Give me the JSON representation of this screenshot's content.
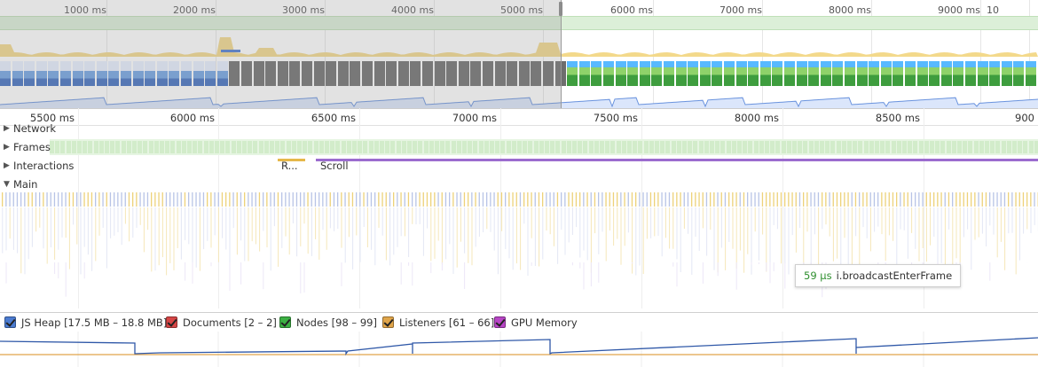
{
  "overview": {
    "time_labels": [
      "1000 ms",
      "2000 ms",
      "3000 ms",
      "4000 ms",
      "5000 ms",
      "6000 ms",
      "7000 ms",
      "8000 ms",
      "9000 ms",
      "10"
    ]
  },
  "ruler": {
    "labels": [
      "5500 ms",
      "6000 ms",
      "6500 ms",
      "7000 ms",
      "7500 ms",
      "8000 ms",
      "8500 ms",
      "900"
    ]
  },
  "tracks": {
    "network": "Network",
    "frames": "Frames",
    "interactions": "Interactions",
    "main": "Main"
  },
  "interactions": {
    "response_label": "R...",
    "scroll_label": "Scroll"
  },
  "tooltip": {
    "duration": "59 µs",
    "name": "i.broadcastEnterFrame"
  },
  "counters": [
    {
      "label": "JS Heap [17.5 MB – 18.8 MB]",
      "color": "#4b7bd1"
    },
    {
      "label": "Documents [2 – 2]",
      "color": "#d64545"
    },
    {
      "label": "Nodes [98 – 99]",
      "color": "#3cb043"
    },
    {
      "label": "Listeners [61 – 66]",
      "color": "#e0a54a"
    },
    {
      "label": "GPU Memory",
      "color": "#b845c6"
    }
  ],
  "colors": {
    "fps": "#dcefd8",
    "cpu_scripting": "#f3d98b",
    "cpu_rendering": "#c3a6e4",
    "heap_line": "#2f58a8",
    "listeners_line": "#e0a54a",
    "selection_dim": "#969696"
  },
  "icons": {
    "collapsed": "triangle-right-icon",
    "expanded": "triangle-down-icon"
  }
}
